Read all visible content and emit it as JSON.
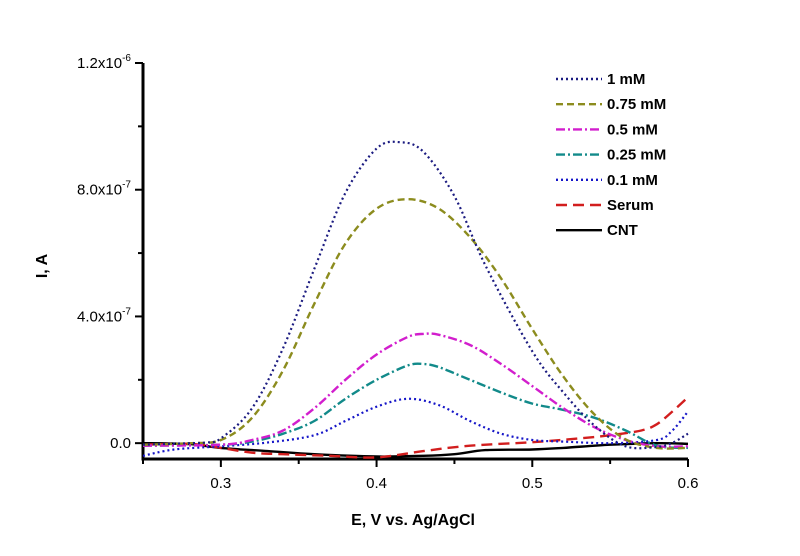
{
  "chart_data": {
    "type": "line",
    "title": "",
    "xlabel": "E, V vs. Ag/AgCl",
    "ylabel": "I, A",
    "xlim": [
      0.25,
      0.6
    ],
    "ylim": [
      -5e-08,
      1.2e-06
    ],
    "x_ticks": [
      0.3,
      0.4,
      0.5,
      0.6
    ],
    "x_tick_labels": [
      "0.3",
      "0.4",
      "0.5",
      "0.6"
    ],
    "y_ticks": [
      0,
      4e-07,
      8e-07,
      1.2e-06
    ],
    "y_tick_labels": [
      {
        "mantissa": "0.0",
        "exp": ""
      },
      {
        "mantissa": "4.0x10",
        "exp": "-7"
      },
      {
        "mantissa": "8.0x10",
        "exp": "-7"
      },
      {
        "mantissa": "1.2x10",
        "exp": "-6"
      }
    ],
    "grid": false,
    "legend_position": "top-right",
    "series": [
      {
        "name": "1 mM",
        "color": "#1b1b80",
        "style": "dotted",
        "x": [
          0.25,
          0.28,
          0.29,
          0.3,
          0.32,
          0.34,
          0.36,
          0.38,
          0.4,
          0.415,
          0.43,
          0.45,
          0.47,
          0.5,
          0.52,
          0.54,
          0.56,
          0.58,
          0.59,
          0.6
        ],
        "y": [
          -5e-09,
          0,
          2e-09,
          1.5e-08,
          1.1e-07,
          3e-07,
          5.5e-07,
          7.9e-07,
          9.3e-07,
          9.5e-07,
          9.2e-07,
          7.8e-07,
          5.6e-07,
          2.9e-07,
          1.6e-07,
          5.5e-08,
          -1e-08,
          -1.2e-08,
          1e-09,
          3e-08
        ]
      },
      {
        "name": "0.75 mM",
        "color": "#8c8c1e",
        "style": "dashed",
        "x": [
          0.25,
          0.28,
          0.3,
          0.32,
          0.34,
          0.36,
          0.38,
          0.4,
          0.42,
          0.44,
          0.46,
          0.48,
          0.5,
          0.52,
          0.54,
          0.56,
          0.58,
          0.6
        ],
        "y": [
          -5e-09,
          0,
          1e-08,
          8e-08,
          2.3e-07,
          4.4e-07,
          6.3e-07,
          7.4e-07,
          7.7e-07,
          7.4e-07,
          6.5e-07,
          5.2e-07,
          3.6e-07,
          2.1e-07,
          9e-08,
          1.2e-08,
          -1.5e-08,
          -1.5e-08
        ]
      },
      {
        "name": "0.5 mM",
        "color": "#d21ecd",
        "style": "dashdot",
        "x": [
          0.25,
          0.3,
          0.32,
          0.34,
          0.36,
          0.38,
          0.4,
          0.42,
          0.43,
          0.44,
          0.46,
          0.48,
          0.5,
          0.52,
          0.54,
          0.56,
          0.58,
          0.6
        ],
        "y": [
          -8e-09,
          -5e-09,
          1e-08,
          4e-08,
          1.1e-07,
          2e-07,
          2.8e-07,
          3.35e-07,
          3.45e-07,
          3.42e-07,
          3.1e-07,
          2.5e-07,
          1.8e-07,
          1.1e-07,
          5e-08,
          1e-08,
          -1e-08,
          -1e-08
        ]
      },
      {
        "name": "0.25 mM",
        "color": "#128a8a",
        "style": "dashdot",
        "x": [
          0.25,
          0.3,
          0.32,
          0.34,
          0.36,
          0.38,
          0.4,
          0.42,
          0.43,
          0.44,
          0.46,
          0.48,
          0.5,
          0.52,
          0.54,
          0.56,
          0.58,
          0.6
        ],
        "y": [
          -8e-09,
          -5e-09,
          5e-09,
          3e-08,
          7e-08,
          1.4e-07,
          2e-07,
          2.45e-07,
          2.5e-07,
          2.4e-07,
          2e-07,
          1.6e-07,
          1.25e-07,
          1.05e-07,
          8e-08,
          4e-08,
          -8e-09,
          -1.5e-08
        ]
      },
      {
        "name": "0.1 mM",
        "color": "#1616c8",
        "style": "dotted",
        "x": [
          0.25,
          0.27,
          0.3,
          0.33,
          0.36,
          0.38,
          0.4,
          0.42,
          0.44,
          0.46,
          0.48,
          0.5,
          0.52,
          0.55,
          0.58,
          0.59,
          0.6
        ],
        "y": [
          -4e-08,
          -2e-08,
          -1e-08,
          2e-09,
          2.5e-08,
          7e-08,
          1.15e-07,
          1.4e-07,
          1.2e-07,
          7e-08,
          3e-08,
          1e-08,
          5e-09,
          0,
          1e-08,
          4e-08,
          1e-07
        ]
      },
      {
        "name": "Serum",
        "color": "#d21e1e",
        "style": "longdash",
        "x": [
          0.25,
          0.28,
          0.3,
          0.32,
          0.34,
          0.37,
          0.4,
          0.43,
          0.46,
          0.5,
          0.53,
          0.55,
          0.57,
          0.58,
          0.59,
          0.6
        ],
        "y": [
          -5e-09,
          -2e-09,
          -1.5e-08,
          -3e-08,
          -3.5e-08,
          -4e-08,
          -4.5e-08,
          -2.5e-08,
          -8e-09,
          3e-09,
          1.5e-08,
          2.5e-08,
          4e-08,
          6e-08,
          1e-07,
          1.45e-07
        ]
      },
      {
        "name": "CNT",
        "color": "#000000",
        "style": "solid",
        "x": [
          0.25,
          0.28,
          0.3,
          0.33,
          0.36,
          0.4,
          0.43,
          0.45,
          0.47,
          0.5,
          0.52,
          0.55,
          0.58,
          0.6
        ],
        "y": [
          0,
          -3e-09,
          -1.5e-08,
          -2.5e-08,
          -3.5e-08,
          -4.2e-08,
          -4e-08,
          -3.5e-08,
          -2.2e-08,
          -2e-08,
          -1.5e-08,
          -5e-09,
          0,
          -2e-09
        ]
      }
    ]
  }
}
